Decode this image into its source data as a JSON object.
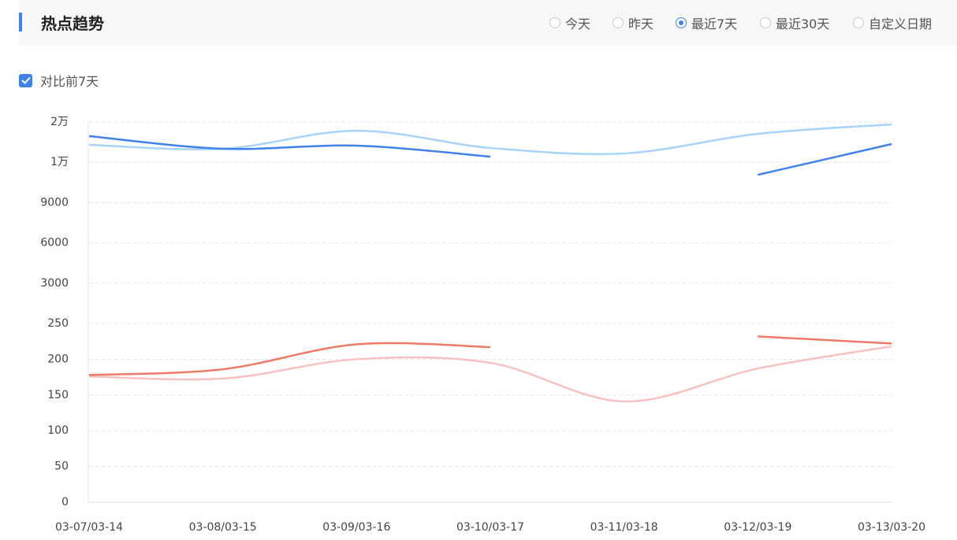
{
  "header": {
    "title": "热点趋势",
    "options": [
      "今天",
      "昨天",
      "最近7天",
      "最近30天",
      "自定义日期"
    ],
    "selected": 2
  },
  "compare": {
    "label": "对比前7天",
    "checked": true
  },
  "chart_data": [
    {
      "type": "line",
      "ylim": [
        0,
        15000
      ],
      "yticks": [
        3000,
        6000,
        9000,
        {
          "value": 12000,
          "label": "1万"
        },
        {
          "value": 15000,
          "label": "2万"
        }
      ],
      "grid": true,
      "series": [
        {
          "color": "#a8d3fb",
          "values": [
            13300,
            13010,
            14350,
            13070,
            12660,
            14120,
            14820
          ]
        },
        {
          "color": "#3f82eb",
          "values": [
            13950,
            13010,
            13240,
            12420,
            null,
            11070,
            13360
          ]
        }
      ]
    },
    {
      "type": "line",
      "categories": [
        "03-07/03-14",
        "03-08/03-15",
        "03-09/03-16",
        "03-10/03-17",
        "03-11/03-18",
        "03-12/03-19",
        "03-13/03-20"
      ],
      "ylim": [
        0,
        250
      ],
      "yticks": [
        0,
        50,
        100,
        150,
        200,
        250
      ],
      "grid": true,
      "series": [
        {
          "color": "#f9c1c0",
          "values": [
            176,
            173,
            200,
            195,
            141,
            187,
            218
          ]
        },
        {
          "color": "#ef7a66",
          "values": [
            178,
            186,
            221,
            217,
            null,
            232,
            222
          ]
        }
      ]
    }
  ]
}
